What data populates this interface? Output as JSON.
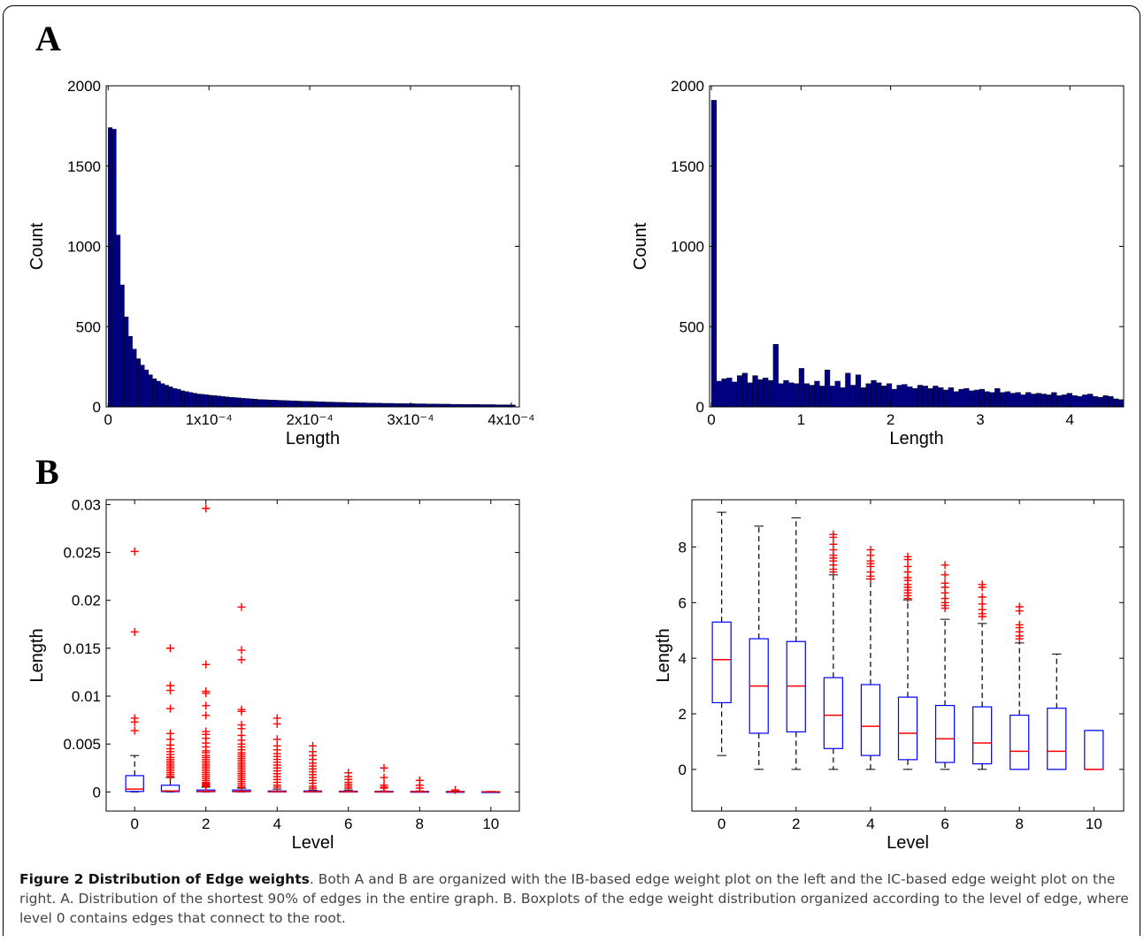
{
  "panel_labels": {
    "a": "A",
    "b": "B"
  },
  "caption": {
    "title": "Figure 2 Distribution of Edge weights",
    "text": ". Both A and B are organized with the IB-based edge weight plot on the left and the IC-based edge weight plot on the right. A. Distribution of the shortest 90% of edges in the entire graph. B. Boxplots of the edge weight distribution organized according to the level of edge, where level 0 contains edges that connect to the root."
  },
  "colors": {
    "bar": "#000080",
    "box": "#0000ff",
    "median": "#ff0000",
    "outlier": "#ff0000",
    "whisker": "#000000"
  },
  "chart_data": [
    {
      "type": "bar",
      "xlabel": "Length",
      "ylabel": "Count",
      "xlim": [
        -2e-06,
        0.000408
      ],
      "ylim": [
        0,
        2000
      ],
      "xticks": [
        0,
        0.0001,
        0.0002,
        0.0003,
        0.0004
      ],
      "xtick_labels": [
        "0",
        "1x10⁻⁴",
        "2x10⁻⁴",
        "3x10⁻⁴",
        "4x10⁻⁴"
      ],
      "yticks": [
        0,
        500,
        1000,
        1500,
        2000
      ],
      "bin_width": 4e-06,
      "x_start": 0,
      "values": [
        1740,
        1730,
        1070,
        760,
        560,
        440,
        360,
        300,
        260,
        230,
        200,
        175,
        160,
        145,
        135,
        125,
        115,
        110,
        100,
        95,
        90,
        85,
        80,
        78,
        75,
        72,
        70,
        68,
        65,
        62,
        60,
        58,
        56,
        54,
        52,
        50,
        48,
        46,
        45,
        44,
        43,
        42,
        41,
        40,
        39,
        38,
        37,
        36,
        35,
        35,
        34,
        33,
        32,
        31,
        30,
        30,
        29,
        28,
        28,
        27,
        26,
        26,
        25,
        25,
        24,
        24,
        23,
        23,
        22,
        22,
        22,
        21,
        21,
        20,
        20,
        20,
        19,
        19,
        19,
        18,
        18,
        18,
        17,
        17,
        17,
        16,
        16,
        16,
        15,
        15,
        15,
        15,
        14,
        14,
        14,
        14,
        13,
        13,
        13,
        13,
        12
      ]
    },
    {
      "type": "bar",
      "xlabel": "Length",
      "ylabel": "Count",
      "xlim": [
        -0.02,
        4.6
      ],
      "ylim": [
        0,
        2000
      ],
      "xticks": [
        0,
        1,
        2,
        3,
        4
      ],
      "xtick_labels": [
        "0",
        "1",
        "2",
        "3",
        "4"
      ],
      "yticks": [
        0,
        500,
        1000,
        1500,
        2000
      ],
      "bin_width": 0.0575,
      "x_start": 0,
      "values": [
        1910,
        160,
        175,
        180,
        155,
        195,
        210,
        150,
        195,
        170,
        180,
        165,
        390,
        145,
        165,
        150,
        145,
        240,
        145,
        135,
        160,
        130,
        230,
        130,
        160,
        120,
        210,
        135,
        200,
        120,
        145,
        165,
        150,
        130,
        145,
        110,
        135,
        140,
        125,
        115,
        135,
        130,
        115,
        130,
        120,
        105,
        120,
        95,
        110,
        115,
        100,
        105,
        110,
        95,
        90,
        115,
        90,
        95,
        85,
        90,
        75,
        90,
        80,
        85,
        80,
        75,
        90,
        70,
        75,
        85,
        70,
        65,
        75,
        80,
        65,
        60,
        70,
        65,
        50,
        45
      ]
    },
    {
      "type": "box",
      "xlabel": "Level",
      "ylabel": "Length",
      "categories": [
        0,
        1,
        2,
        3,
        4,
        5,
        6,
        7,
        8,
        9,
        10
      ],
      "xlim": [
        -0.8,
        10.8
      ],
      "ylim": [
        -0.002,
        0.0305
      ],
      "yticks": [
        0,
        0.005,
        0.01,
        0.015,
        0.02,
        0.025,
        0.03
      ],
      "ytick_labels": [
        "0",
        "0.005",
        "0.01",
        "0.015",
        "0.02",
        "0.025",
        "0.03"
      ],
      "xticks": [
        0,
        2,
        4,
        6,
        8,
        10
      ],
      "boxes": [
        {
          "q1": 5e-05,
          "median": 0.0003,
          "q3": 0.0017,
          "whisker_low": 0,
          "whisker_high": 0.0038
        },
        {
          "q1": 3e-05,
          "median": 0.0001,
          "q3": 0.0007,
          "whisker_low": 0,
          "whisker_high": 0.0015
        },
        {
          "q1": 2e-05,
          "median": 6e-05,
          "q3": 0.0002,
          "whisker_low": 0,
          "whisker_high": 0.0005
        },
        {
          "q1": 2e-05,
          "median": 5e-05,
          "q3": 0.0002,
          "whisker_low": 0,
          "whisker_high": 0.0004
        },
        {
          "q1": 1e-05,
          "median": 3e-05,
          "q3": 0.0001,
          "whisker_low": 0,
          "whisker_high": 0.0003
        },
        {
          "q1": 1e-05,
          "median": 3e-05,
          "q3": 0.0001,
          "whisker_low": 0,
          "whisker_high": 0.0002
        },
        {
          "q1": 1e-05,
          "median": 2e-05,
          "q3": 8e-05,
          "whisker_low": 0,
          "whisker_high": 0.0002
        },
        {
          "q1": 1e-05,
          "median": 2e-05,
          "q3": 7e-05,
          "whisker_low": 0,
          "whisker_high": 0.0001
        },
        {
          "q1": 1e-05,
          "median": 2e-05,
          "q3": 6e-05,
          "whisker_low": 0,
          "whisker_high": 0.0001
        },
        {
          "q1": 1e-05,
          "median": 2e-05,
          "q3": 5e-05,
          "whisker_low": 0,
          "whisker_high": 0.0001
        },
        {
          "q1": 0,
          "median": 1e-05,
          "q3": 3e-05,
          "whisker_low": 0,
          "whisker_high": 5e-05
        }
      ],
      "outliers": [
        [
          0.0251,
          0.0167,
          0.0077,
          0.0073,
          0.0064
        ],
        [
          0.015,
          0.0111,
          0.0106,
          0.0087,
          0.0061,
          0.0055,
          0.0049,
          0.0045,
          0.0042,
          0.0039,
          0.0036,
          0.0034,
          0.0032,
          0.003,
          0.0028,
          0.0026,
          0.0024,
          0.0022,
          0.002,
          0.0018,
          0.0016
        ],
        [
          0.0296,
          0.0133,
          0.0105,
          0.0103,
          0.009,
          0.008,
          0.0063,
          0.006,
          0.0056,
          0.0051,
          0.0047,
          0.0043,
          0.0041,
          0.0038,
          0.0036,
          0.0034,
          0.0032,
          0.003,
          0.0028,
          0.0026,
          0.0024,
          0.0022,
          0.002,
          0.0018,
          0.0016,
          0.0014,
          0.0012,
          0.001,
          0.0009,
          0.0008,
          0.0007,
          0.0006
        ],
        [
          0.0193,
          0.0148,
          0.0138,
          0.0086,
          0.0084,
          0.007,
          0.0066,
          0.0059,
          0.0054,
          0.005,
          0.0047,
          0.0044,
          0.0041,
          0.0039,
          0.0037,
          0.0035,
          0.0033,
          0.0031,
          0.0029,
          0.0027,
          0.0025,
          0.0023,
          0.0021,
          0.0019,
          0.0017,
          0.0015,
          0.0013,
          0.0011,
          0.0009,
          0.0007,
          0.0005
        ],
        [
          0.0077,
          0.0071,
          0.0055,
          0.0048,
          0.0044,
          0.004,
          0.0037,
          0.0034,
          0.0031,
          0.0028,
          0.0025,
          0.0022,
          0.0019,
          0.0016,
          0.0013,
          0.001,
          0.0007,
          0.0005
        ],
        [
          0.0048,
          0.0042,
          0.0038,
          0.0034,
          0.003,
          0.0027,
          0.0024,
          0.0021,
          0.0018,
          0.0015,
          0.0012,
          0.0009,
          0.0006,
          0.0004
        ],
        [
          0.002,
          0.0016,
          0.0013,
          0.001,
          0.0008,
          0.0006,
          0.0004
        ],
        [
          0.0025,
          0.0015,
          0.0007,
          0.0005,
          0.0004
        ],
        [
          0.0012,
          0.0007,
          0.0004
        ],
        [
          0.0002
        ],
        []
      ]
    },
    {
      "type": "box",
      "xlabel": "Level",
      "ylabel": "Length",
      "categories": [
        0,
        1,
        2,
        3,
        4,
        5,
        6,
        7,
        8,
        9,
        10
      ],
      "xlim": [
        -0.8,
        10.8
      ],
      "ylim": [
        -1.5,
        9.7
      ],
      "yticks": [
        0,
        2,
        4,
        6,
        8
      ],
      "ytick_labels": [
        "0",
        "2",
        "4",
        "6",
        "8"
      ],
      "xticks": [
        0,
        2,
        4,
        6,
        8,
        10
      ],
      "boxes": [
        {
          "q1": 2.4,
          "median": 3.95,
          "q3": 5.3,
          "whisker_low": 0.5,
          "whisker_high": 9.25
        },
        {
          "q1": 1.3,
          "median": 3.0,
          "q3": 4.7,
          "whisker_low": 0,
          "whisker_high": 8.75
        },
        {
          "q1": 1.35,
          "median": 3.0,
          "q3": 4.6,
          "whisker_low": 0,
          "whisker_high": 9.05
        },
        {
          "q1": 0.75,
          "median": 1.95,
          "q3": 3.3,
          "whisker_low": 0,
          "whisker_high": 7.0
        },
        {
          "q1": 0.5,
          "median": 1.55,
          "q3": 3.05,
          "whisker_low": 0,
          "whisker_high": 6.85
        },
        {
          "q1": 0.35,
          "median": 1.3,
          "q3": 2.6,
          "whisker_low": 0,
          "whisker_high": 6.1
        },
        {
          "q1": 0.25,
          "median": 1.1,
          "q3": 2.3,
          "whisker_low": 0,
          "whisker_high": 5.4
        },
        {
          "q1": 0.2,
          "median": 0.95,
          "q3": 2.25,
          "whisker_low": 0,
          "whisker_high": 5.25
        },
        {
          "q1": 0,
          "median": 0.65,
          "q3": 1.95,
          "whisker_low": 0,
          "whisker_high": 4.55
        },
        {
          "q1": 0,
          "median": 0.65,
          "q3": 2.2,
          "whisker_low": 0,
          "whisker_high": 4.15
        },
        {
          "q1": 0,
          "median": 0,
          "q3": 1.4,
          "whisker_low": 0,
          "whisker_high": 1.4
        }
      ],
      "outliers": [
        [],
        [],
        [],
        [
          8.45,
          8.35,
          8.1,
          7.9,
          7.7,
          7.6,
          7.5,
          7.35,
          7.2,
          7.1
        ],
        [
          7.9,
          7.7,
          7.5,
          7.4,
          7.3,
          7.1,
          6.95,
          6.85
        ],
        [
          7.65,
          7.55,
          7.3,
          7.1,
          6.9,
          6.8,
          6.65,
          6.55,
          6.45,
          6.35,
          6.25,
          6.15
        ],
        [
          7.35,
          7.0,
          6.7,
          6.55,
          6.35,
          6.15,
          6.0,
          5.9,
          5.8
        ],
        [
          6.65,
          6.55,
          6.2,
          5.95,
          5.75,
          5.6,
          5.5
        ],
        [
          5.85,
          5.7,
          5.2,
          5.1,
          4.95,
          4.8,
          4.7
        ],
        [],
        []
      ]
    }
  ]
}
